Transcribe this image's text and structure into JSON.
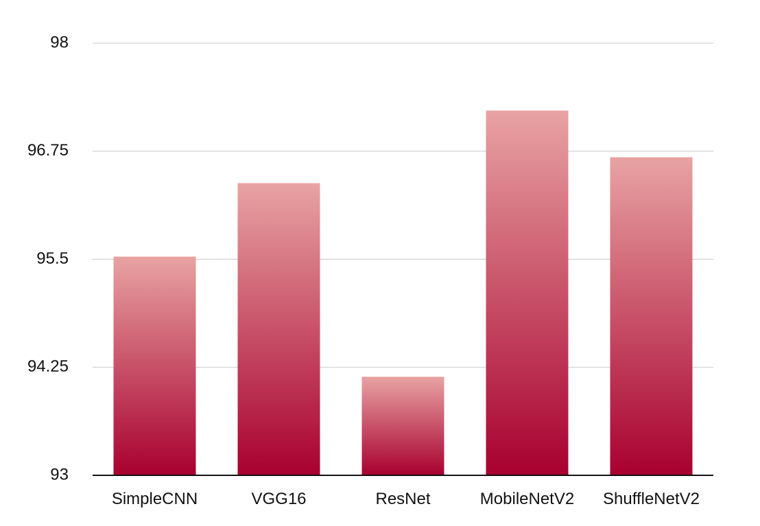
{
  "chart_data": {
    "type": "bar",
    "title": "",
    "xlabel": "",
    "ylabel": "",
    "categories": [
      "SimpleCNN",
      "VGG16",
      "ResNet",
      "MobileNetV2",
      "ShuffleNetV2"
    ],
    "values": [
      95.53,
      96.38,
      94.14,
      97.22,
      96.68
    ],
    "ylim": [
      93,
      98
    ],
    "yticks": [
      93,
      94.25,
      95.5,
      96.75,
      98
    ],
    "ytick_labels": [
      "93",
      "94.25",
      "95.5",
      "96.75",
      "98"
    ],
    "grid": true,
    "legend": "none",
    "colors": {
      "bar_top": "#e8a3a3",
      "bar_bottom": "#a8002f",
      "gridline": "#c8c8c8",
      "axis": "#111111"
    }
  }
}
